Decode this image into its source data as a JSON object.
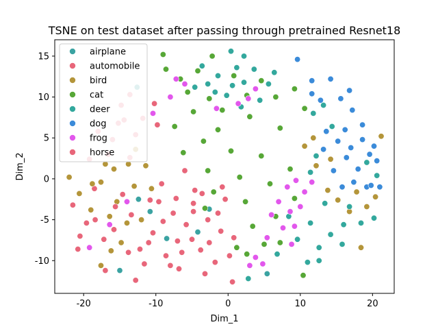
{
  "chart_data": {
    "type": "scatter",
    "title": "TSNE on test dataset after passing through pretrained Resnet18",
    "xlabel": "Dim_1",
    "ylabel": "Dim_2",
    "xlim": [
      -24,
      23
    ],
    "ylim": [
      -14,
      17
    ],
    "xticks": [
      -20,
      -10,
      0,
      10,
      20
    ],
    "yticks": [
      -10,
      -5,
      0,
      5,
      10,
      15
    ],
    "grid": false,
    "legend_position": "top-left",
    "series": [
      {
        "name": "airplane",
        "color": "#3ba3a2",
        "points": [
          [
            -12.6,
            11.2
          ],
          [
            -8.5,
            -7.3
          ],
          [
            -10.8,
            -4.0
          ],
          [
            -4.2,
            -6.5
          ],
          [
            -12.4,
            -2.5
          ],
          [
            -15.0,
            -11.2
          ],
          [
            5.4,
            -11.6
          ],
          [
            -2.6,
            -3.7
          ]
        ]
      },
      {
        "name": "automobile",
        "color": "#e8667a",
        "points": [
          [
            -21.5,
            -3.2
          ],
          [
            -20.5,
            -7.0
          ],
          [
            -18.5,
            -1.2
          ],
          [
            -17.2,
            -7.4
          ],
          [
            -15.8,
            -6.2
          ],
          [
            -14.6,
            -1.9
          ],
          [
            -13.4,
            -4.4
          ],
          [
            -12.2,
            -8.6
          ],
          [
            -11.6,
            -10.4
          ],
          [
            -10.4,
            -6.6
          ],
          [
            -9.6,
            -2.8
          ],
          [
            -8.6,
            -9.4
          ],
          [
            -7.6,
            -4.2
          ],
          [
            -6.8,
            -11.0
          ],
          [
            -5.8,
            -5.6
          ],
          [
            -4.8,
            -3.0
          ],
          [
            -3.8,
            -8.7
          ],
          [
            -2.8,
            -5.0
          ],
          [
            -1.8,
            -10.2
          ],
          [
            -1.0,
            -6.4
          ],
          [
            -0.4,
            -2.5
          ],
          [
            0.8,
            -7.2
          ],
          [
            -3.2,
            -11.6
          ],
          [
            -12.8,
            -12.4
          ],
          [
            -9.2,
            -0.6
          ],
          [
            -6.0,
            1.0
          ],
          [
            -16.6,
            3.0
          ],
          [
            -19.2,
            2.4
          ],
          [
            -4.6,
            -1.4
          ],
          [
            -10.2,
            9.2
          ],
          [
            -13.6,
            10.3
          ],
          [
            -14.4,
            7.2
          ],
          [
            -9.8,
            6.6
          ],
          [
            -12.8,
            5.4
          ],
          [
            -15.2,
            6.8
          ],
          [
            0.6,
            -12.6
          ],
          [
            -7.0,
            -7.6
          ]
        ]
      },
      {
        "name": "bird",
        "color": "#b4953a",
        "points": [
          [
            -22.0,
            0.2
          ],
          [
            -20.6,
            -1.8
          ],
          [
            -19.0,
            -3.8
          ],
          [
            -17.6,
            -0.4
          ],
          [
            -16.4,
            -4.6
          ],
          [
            -15.4,
            -2.8
          ],
          [
            -14.0,
            -5.4
          ],
          [
            -13.0,
            -0.9
          ],
          [
            -12.0,
            -5.0
          ],
          [
            -11.4,
            1.6
          ],
          [
            -10.6,
            -1.2
          ],
          [
            -17.6,
            -10.6
          ],
          [
            -16.2,
            -8.8
          ],
          [
            -14.8,
            -7.8
          ],
          [
            -15.8,
            1.2
          ],
          [
            -13.8,
            1.8
          ],
          [
            -12.8,
            3.6
          ],
          [
            -17.0,
            1.8
          ],
          [
            -18.8,
            -0.6
          ],
          [
            10.6,
            4.0
          ],
          [
            12.2,
            1.6
          ],
          [
            13.8,
            -1.4
          ],
          [
            15.2,
            -2.6
          ],
          [
            17.8,
            -1.6
          ],
          [
            19.2,
            -3.4
          ],
          [
            20.4,
            -2.2
          ],
          [
            16.8,
            -4.0
          ],
          [
            14.2,
            2.4
          ],
          [
            11.8,
            5.0
          ],
          [
            18.4,
            -8.4
          ],
          [
            21.2,
            5.2
          ]
        ]
      },
      {
        "name": "cat",
        "color": "#57a737",
        "points": [
          [
            -4.2,
            13.2
          ],
          [
            -2.2,
            15.0
          ],
          [
            0.8,
            12.6
          ],
          [
            -2.6,
            9.8
          ],
          [
            -0.8,
            8.4
          ],
          [
            2.6,
            10.2
          ],
          [
            4.6,
            12.0
          ],
          [
            6.6,
            10.0
          ],
          [
            -5.6,
            10.6
          ],
          [
            -6.6,
            12.2
          ],
          [
            -4.8,
            8.2
          ],
          [
            -7.4,
            6.4
          ],
          [
            -1.4,
            6.0
          ],
          [
            3.0,
            7.6
          ],
          [
            7.2,
            6.2
          ],
          [
            -3.4,
            4.6
          ],
          [
            0.4,
            3.4
          ],
          [
            4.6,
            2.8
          ],
          [
            8.6,
            1.2
          ],
          [
            -6.2,
            3.2
          ],
          [
            -2.8,
            1.0
          ],
          [
            1.6,
            0.2
          ],
          [
            5.8,
            -0.6
          ],
          [
            9.2,
            -2.4
          ],
          [
            -2.0,
            -1.6
          ],
          [
            2.4,
            -2.8
          ],
          [
            6.6,
            -4.6
          ],
          [
            3.4,
            -5.8
          ],
          [
            7.2,
            -7.8
          ],
          [
            1.2,
            -8.4
          ],
          [
            -8.6,
            13.4
          ],
          [
            -9.0,
            15.2
          ],
          [
            9.2,
            11.0
          ],
          [
            10.6,
            8.6
          ],
          [
            -3.2,
            -3.6
          ],
          [
            5.0,
            -8.0
          ],
          [
            10.4,
            -11.8
          ],
          [
            2.6,
            -9.2
          ]
        ]
      },
      {
        "name": "deer",
        "color": "#33a89d",
        "points": [
          [
            -3.6,
            13.8
          ],
          [
            -1.4,
            12.6
          ],
          [
            0.4,
            15.6
          ],
          [
            1.2,
            13.6
          ],
          [
            2.2,
            15.0
          ],
          [
            3.6,
            13.4
          ],
          [
            0.6,
            11.4
          ],
          [
            2.2,
            11.8
          ],
          [
            -2.8,
            11.6
          ],
          [
            4.4,
            9.6
          ],
          [
            -0.2,
            10.2
          ],
          [
            5.6,
            11.6
          ],
          [
            -4.6,
            11.2
          ],
          [
            1.8,
            8.8
          ],
          [
            6.4,
            13.0
          ],
          [
            -1.8,
            10.6
          ],
          [
            11.8,
            8.0
          ],
          [
            13.2,
            9.0
          ],
          [
            14.4,
            6.4
          ],
          [
            12.2,
            2.8
          ],
          [
            11.4,
            0.8
          ],
          [
            13.4,
            -3.0
          ],
          [
            11.4,
            -5.4
          ],
          [
            14.2,
            -6.8
          ],
          [
            12.6,
            -8.4
          ],
          [
            16.0,
            -5.6
          ],
          [
            8.4,
            -4.6
          ],
          [
            9.6,
            -7.4
          ],
          [
            11.0,
            -10.2
          ],
          [
            6.8,
            -9.2
          ],
          [
            16.8,
            -3.4
          ],
          [
            18.4,
            -5.4
          ],
          [
            20.2,
            -4.8
          ],
          [
            20.6,
            0.4
          ],
          [
            19.2,
            2.0
          ],
          [
            2.8,
            -12.2
          ],
          [
            12.6,
            -10.0
          ],
          [
            15.8,
            -8.0
          ]
        ]
      },
      {
        "name": "dog",
        "color": "#3b8bd9",
        "points": [
          [
            9.6,
            14.6
          ],
          [
            11.6,
            12.0
          ],
          [
            14.2,
            12.2
          ],
          [
            15.6,
            9.8
          ],
          [
            17.2,
            8.4
          ],
          [
            16.2,
            6.0
          ],
          [
            18.6,
            4.8
          ],
          [
            19.6,
            3.0
          ],
          [
            20.6,
            2.2
          ],
          [
            18.0,
            1.2
          ],
          [
            16.4,
            2.6
          ],
          [
            17.4,
            -0.4
          ],
          [
            19.2,
            -1.0
          ],
          [
            21.0,
            -1.0
          ],
          [
            15.2,
            4.6
          ],
          [
            13.6,
            5.8
          ],
          [
            14.6,
            1.0
          ],
          [
            16.8,
            10.8
          ],
          [
            12.8,
            9.6
          ],
          [
            18.6,
            6.6
          ],
          [
            19.8,
            -0.8
          ],
          [
            15.8,
            -1.0
          ],
          [
            13.2,
            3.6
          ],
          [
            17.0,
            3.8
          ],
          [
            20.2,
            4.0
          ],
          [
            11.6,
            10.4
          ]
        ]
      },
      {
        "name": "frog",
        "color": "#e257ec",
        "points": [
          [
            7.0,
            -2.8
          ],
          [
            8.2,
            -1.0
          ],
          [
            9.4,
            -0.2
          ],
          [
            10.6,
            -1.6
          ],
          [
            8.6,
            -4.0
          ],
          [
            10.0,
            -3.4
          ],
          [
            11.6,
            -0.4
          ],
          [
            6.0,
            -4.4
          ],
          [
            7.6,
            -6.0
          ],
          [
            9.2,
            -5.8
          ],
          [
            5.4,
            -7.2
          ],
          [
            3.8,
            -9.6
          ],
          [
            4.8,
            -10.4
          ],
          [
            3.0,
            -10.6
          ],
          [
            -8.0,
            10.0
          ],
          [
            -6.0,
            11.6
          ],
          [
            -7.2,
            12.2
          ],
          [
            2.8,
            9.8
          ],
          [
            1.4,
            9.2
          ],
          [
            3.8,
            11.0
          ],
          [
            -1.6,
            8.6
          ],
          [
            -19.2,
            -8.4
          ],
          [
            -16.4,
            -5.6
          ],
          [
            -10.4,
            8.0
          ],
          [
            -14.0,
            -2.8
          ],
          [
            8.8,
            -8.0
          ]
        ]
      },
      {
        "name": "horse",
        "color": "#e8667a",
        "points": [
          [
            -18.4,
            -5.0
          ],
          [
            -15.6,
            -3.4
          ],
          [
            -13.8,
            -9.0
          ],
          [
            -11.0,
            -7.8
          ],
          [
            -9.0,
            -5.2
          ],
          [
            -7.2,
            -2.4
          ],
          [
            -5.0,
            -7.4
          ],
          [
            -3.6,
            -1.8
          ],
          [
            -1.4,
            -4.2
          ],
          [
            0.2,
            -9.4
          ],
          [
            -6.4,
            -9.0
          ],
          [
            -10.8,
            -2.6
          ],
          [
            -19.6,
            -5.4
          ],
          [
            -20.8,
            -8.6
          ],
          [
            -17.0,
            -11.2
          ],
          [
            -8.0,
            -10.6
          ],
          [
            -2.6,
            -7.8
          ],
          [
            -13.6,
            2.6
          ],
          [
            -16.0,
            4.8
          ],
          [
            -11.8,
            7.4
          ],
          [
            -14.8,
            9.0
          ],
          [
            -18.0,
            5.8
          ],
          [
            -4.8,
            -4.0
          ],
          [
            -0.8,
            -1.0
          ]
        ]
      }
    ]
  }
}
